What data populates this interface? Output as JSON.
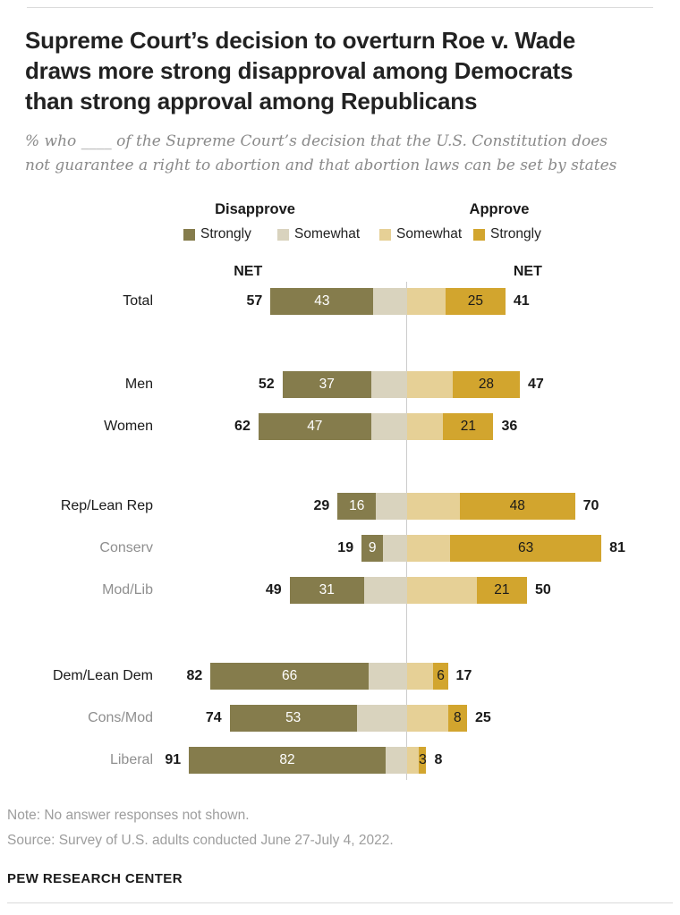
{
  "chart_data": {
    "type": "bar",
    "variant": "diverging-stacked-horizontal",
    "title_lines": [
      "Supreme Court’s decision to overturn Roe v. Wade",
      "draws more strong disapproval among Democrats",
      "than strong approval among Republicans"
    ],
    "subtitle_lines": [
      "% who ____ of the Supreme Court’s decision that the U.S. Constitution does",
      "not guarantee a right to abortion and that abortion laws can be set by states"
    ],
    "legend": {
      "disapprove_header": "Disapprove",
      "approve_header": "Approve",
      "items": [
        {
          "label": "Strongly",
          "color_key": "strongly_disapprove"
        },
        {
          "label": "Somewhat",
          "color_key": "somewhat_disapprove"
        },
        {
          "label": "Somewhat",
          "color_key": "somewhat_approve"
        },
        {
          "label": "Strongly",
          "color_key": "strongly_approve"
        }
      ]
    },
    "net_label": "NET",
    "colors": {
      "strongly_disapprove": "#857c4c",
      "somewhat_disapprove": "#d9d3be",
      "somewhat_approve": "#e6d096",
      "strongly_approve": "#d2a52e",
      "center_line": "#cccccc"
    },
    "sections": [
      {
        "rows": [
          {
            "label": "Total",
            "muted": false,
            "net_disapprove": 57,
            "strongly_disapprove": 43,
            "somewhat_disapprove": 14,
            "somewhat_approve": 16,
            "strongly_approve": 25,
            "net_approve": 41
          }
        ]
      },
      {
        "rows": [
          {
            "label": "Men",
            "muted": false,
            "net_disapprove": 52,
            "strongly_disapprove": 37,
            "somewhat_disapprove": 15,
            "somewhat_approve": 19,
            "strongly_approve": 28,
            "net_approve": 47
          },
          {
            "label": "Women",
            "muted": false,
            "net_disapprove": 62,
            "strongly_disapprove": 47,
            "somewhat_disapprove": 15,
            "somewhat_approve": 15,
            "strongly_approve": 21,
            "net_approve": 36
          }
        ]
      },
      {
        "rows": [
          {
            "label": "Rep/Lean Rep",
            "muted": false,
            "net_disapprove": 29,
            "strongly_disapprove": 16,
            "somewhat_disapprove": 13,
            "somewhat_approve": 22,
            "strongly_approve": 48,
            "net_approve": 70
          },
          {
            "label": "Conserv",
            "muted": true,
            "net_disapprove": 19,
            "strongly_disapprove": 9,
            "somewhat_disapprove": 10,
            "somewhat_approve": 18,
            "strongly_approve": 63,
            "net_approve": 81
          },
          {
            "label": "Mod/Lib",
            "muted": true,
            "net_disapprove": 49,
            "strongly_disapprove": 31,
            "somewhat_disapprove": 18,
            "somewhat_approve": 29,
            "strongly_approve": 21,
            "net_approve": 50
          }
        ]
      },
      {
        "rows": [
          {
            "label": "Dem/Lean Dem",
            "muted": false,
            "net_disapprove": 82,
            "strongly_disapprove": 66,
            "somewhat_disapprove": 16,
            "somewhat_approve": 11,
            "strongly_approve": 6,
            "net_approve": 17
          },
          {
            "label": "Cons/Mod",
            "muted": true,
            "net_disapprove": 74,
            "strongly_disapprove": 53,
            "somewhat_disapprove": 21,
            "somewhat_approve": 17,
            "strongly_approve": 8,
            "net_approve": 25
          },
          {
            "label": "Liberal",
            "muted": true,
            "net_disapprove": 91,
            "strongly_disapprove": 82,
            "somewhat_disapprove": 9,
            "somewhat_approve": 5,
            "strongly_approve": 3,
            "net_approve": 8
          }
        ]
      }
    ],
    "note": "Note: No answer responses not shown.",
    "source": "Source: Survey of U.S. adults conducted June 27-July 4, 2022.",
    "brand": "PEW RESEARCH CENTER"
  }
}
